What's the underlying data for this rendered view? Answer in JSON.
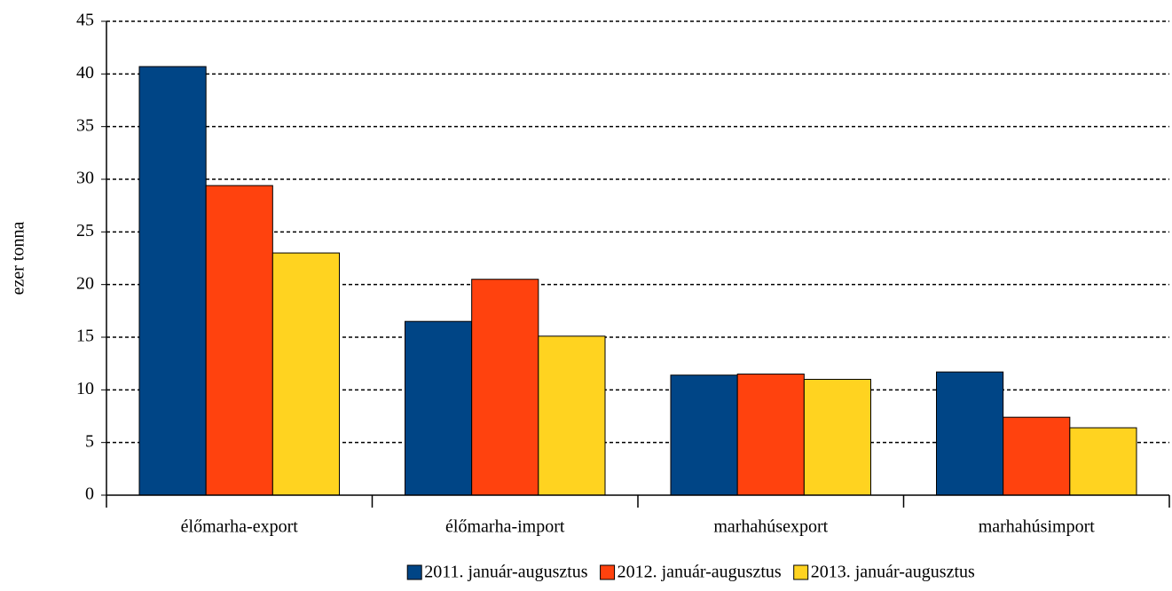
{
  "chart_data": {
    "type": "bar",
    "y_label": "ezer tonna",
    "categories": [
      "élőmarha-export",
      "élőmarha-import",
      "marhahúsexport",
      "marhahúsimport"
    ],
    "series": [
      {
        "name": "2011. január-augusztus",
        "color": "#004586",
        "values": [
          40.7,
          16.5,
          11.4,
          11.7
        ]
      },
      {
        "name": "2012. január-augusztus",
        "color": "#ff420e",
        "values": [
          29.4,
          20.5,
          11.5,
          7.4
        ]
      },
      {
        "name": "2013. január-augusztus",
        "color": "#ffd320",
        "values": [
          23.0,
          15.1,
          11.0,
          6.4
        ]
      }
    ],
    "ylim": [
      0,
      45
    ],
    "yticks": [
      0,
      5,
      10,
      15,
      20,
      25,
      30,
      35,
      40,
      45
    ],
    "grid": true,
    "legend": "bottom"
  }
}
